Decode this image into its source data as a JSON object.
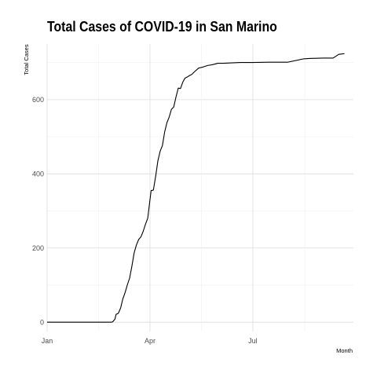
{
  "chart_data": {
    "type": "line",
    "title": "Total Cases of COVID-19 in San Marino",
    "xlabel": "Month",
    "ylabel": "Total Cases",
    "x_tick_labels": [
      "Jan",
      "Apr",
      "Jul"
    ],
    "y_ticks": [
      0,
      200,
      400,
      600
    ],
    "xlim": [
      "2020-01-01",
      "2020-09-28"
    ],
    "ylim": [
      -25,
      750
    ],
    "grid": true,
    "line_color": "#000000",
    "series": [
      {
        "x": [
          "2020-01-01",
          "2020-02-27",
          "2020-02-28",
          "2020-03-01",
          "2020-03-02",
          "2020-03-04",
          "2020-03-06",
          "2020-03-08",
          "2020-03-10",
          "2020-03-12",
          "2020-03-14",
          "2020-03-16",
          "2020-03-18",
          "2020-03-20",
          "2020-03-22",
          "2020-03-24",
          "2020-03-26",
          "2020-03-28",
          "2020-03-30",
          "2020-04-02",
          "2020-04-04",
          "2020-04-06",
          "2020-04-08",
          "2020-04-10",
          "2020-04-12",
          "2020-04-14",
          "2020-04-16",
          "2020-04-18",
          "2020-04-20",
          "2020-04-22",
          "2020-04-24",
          "2020-04-26",
          "2020-04-28",
          "2020-04-30",
          "2020-05-02",
          "2020-05-04",
          "2020-05-06",
          "2020-05-08",
          "2020-05-10",
          "2020-05-14",
          "2020-05-18",
          "2020-05-22",
          "2020-05-26",
          "2020-05-31",
          "2020-06-05",
          "2020-06-12",
          "2020-06-20",
          "2020-07-01",
          "2020-07-15",
          "2020-08-01",
          "2020-08-15",
          "2020-08-20",
          "2020-09-01",
          "2020-09-10",
          "2020-09-15",
          "2020-09-20"
        ],
        "y": [
          0,
          0,
          1,
          8,
          21,
          24,
          38,
          63,
          80,
          101,
          119,
          151,
          187,
          208,
          223,
          230,
          245,
          264,
          280,
          355,
          356,
          393,
          435,
          461,
          476,
          513,
          538,
          553,
          574,
          580,
          607,
          631,
          630,
          647,
          658,
          661,
          665,
          668,
          674,
          685,
          688,
          692,
          694,
          698,
          698,
          699,
          700,
          700,
          701,
          701,
          710,
          711,
          712,
          712,
          722,
          724
        ]
      }
    ]
  }
}
